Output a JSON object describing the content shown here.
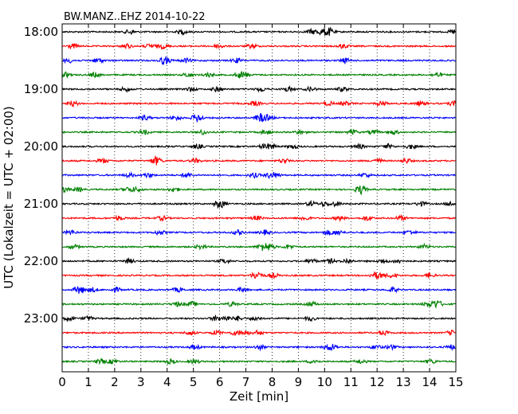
{
  "chart_data": {
    "type": "line",
    "title": "BW.MANZ..EHZ 2014-10-22",
    "xlabel": "Zeit  [min]",
    "ylabel": "UTC (Lokalzeit = UTC + 02:00)",
    "xlim": [
      0,
      15
    ],
    "x_ticks": [
      "0",
      "1",
      "2",
      "3",
      "4",
      "5",
      "6",
      "7",
      "8",
      "9",
      "10",
      "11",
      "12",
      "13",
      "14",
      "15"
    ],
    "y_ticks": [
      "18:00",
      "19:00",
      "20:00",
      "21:00",
      "22:00",
      "23:00"
    ],
    "grid": "vertical dotted at each minute",
    "trace_colors": [
      "#000000",
      "#ff0000",
      "#0000ff",
      "#008000"
    ],
    "row_minutes": 15,
    "row_count": 24
  }
}
